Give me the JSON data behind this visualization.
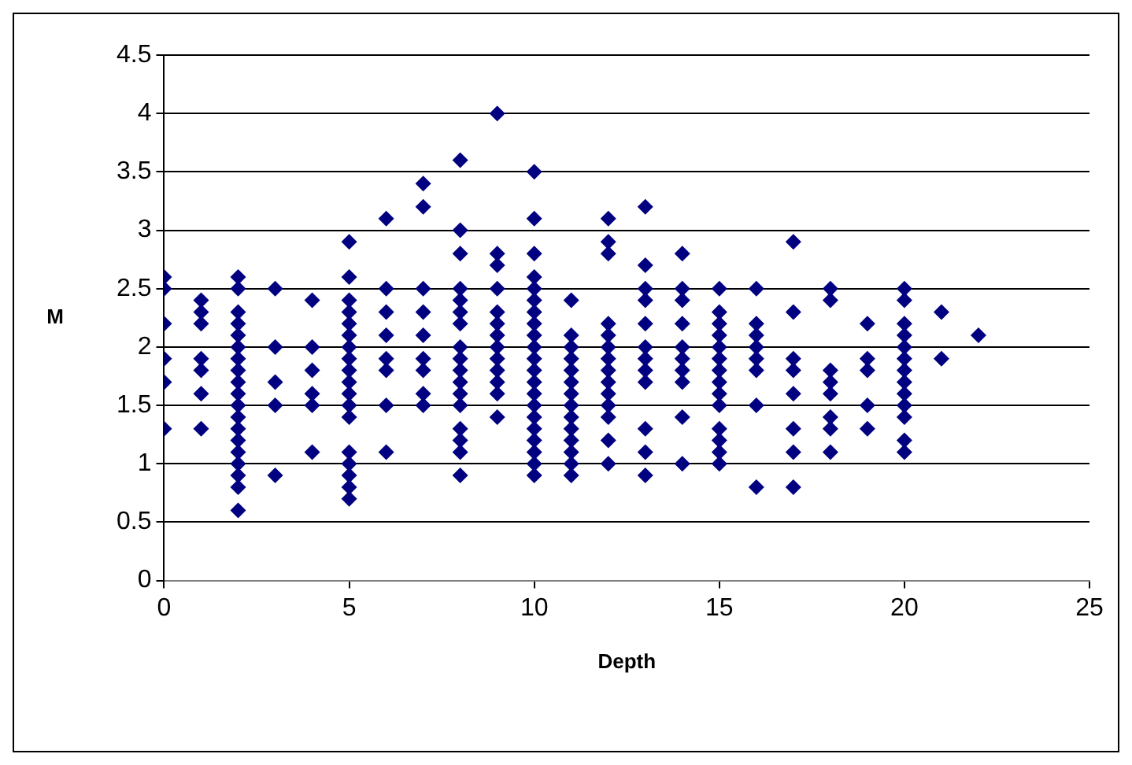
{
  "chart_data": {
    "type": "scatter",
    "xlabel": "Depth",
    "ylabel": "M",
    "xlim": [
      0,
      25
    ],
    "xticks": [
      0,
      5,
      10,
      15,
      20,
      25
    ],
    "ylim": [
      0,
      4.5
    ],
    "yticks": [
      0,
      0.5,
      1,
      1.5,
      2,
      2.5,
      3,
      3.5,
      4,
      4.5
    ],
    "grid": "y",
    "legend": false,
    "marker": "diamond",
    "series": [
      {
        "color": "#000080",
        "x": [
          0,
          0,
          0,
          0,
          0,
          0,
          1,
          1,
          1,
          1,
          1,
          1,
          1,
          2,
          2,
          2,
          2,
          2,
          2,
          2,
          2,
          2,
          2,
          2,
          2,
          2,
          2,
          2,
          2,
          2,
          2,
          2,
          3,
          3,
          3,
          3,
          3,
          4,
          4,
          4,
          4,
          4,
          4,
          5,
          5,
          5,
          5,
          5,
          5,
          5,
          5,
          5,
          5,
          5,
          5,
          5,
          5,
          5,
          5,
          5,
          5,
          6,
          6,
          6,
          6,
          6,
          6,
          6,
          6,
          7,
          7,
          7,
          7,
          7,
          7,
          7,
          7,
          7,
          8,
          8,
          8,
          8,
          8,
          8,
          8,
          8,
          8,
          8,
          8,
          8,
          8,
          8,
          8,
          8,
          8,
          9,
          9,
          9,
          9,
          9,
          9,
          9,
          9,
          9,
          9,
          9,
          9,
          9,
          10,
          10,
          10,
          10,
          10,
          10,
          10,
          10,
          10,
          10,
          10,
          10,
          10,
          10,
          10,
          10,
          10,
          10,
          10,
          10,
          10,
          11,
          11,
          11,
          11,
          11,
          11,
          11,
          11,
          11,
          11,
          11,
          11,
          11,
          11,
          12,
          12,
          12,
          12,
          12,
          12,
          12,
          12,
          12,
          12,
          12,
          12,
          12,
          12,
          13,
          13,
          13,
          13,
          13,
          13,
          13,
          13,
          13,
          13,
          13,
          13,
          14,
          14,
          14,
          14,
          14,
          14,
          14,
          14,
          14,
          14,
          15,
          15,
          15,
          15,
          15,
          15,
          15,
          15,
          15,
          15,
          15,
          15,
          15,
          15,
          16,
          16,
          16,
          16,
          16,
          16,
          16,
          16,
          17,
          17,
          17,
          17,
          17,
          17,
          17,
          17,
          18,
          18,
          18,
          18,
          18,
          18,
          18,
          18,
          19,
          19,
          19,
          19,
          19,
          20,
          20,
          20,
          20,
          20,
          20,
          20,
          20,
          20,
          20,
          20,
          20,
          20,
          21,
          21,
          22
        ],
        "values": [
          2.6,
          2.5,
          2.2,
          1.9,
          1.7,
          1.3,
          2.4,
          2.3,
          2.2,
          1.9,
          1.8,
          1.6,
          1.3,
          2.6,
          2.5,
          2.3,
          2.2,
          2.1,
          2.0,
          1.9,
          1.8,
          1.7,
          1.6,
          1.5,
          1.4,
          1.3,
          1.2,
          1.1,
          1.0,
          0.9,
          0.8,
          0.6,
          2.5,
          2.0,
          1.7,
          1.5,
          0.9,
          2.4,
          2.0,
          1.8,
          1.6,
          1.5,
          1.1,
          2.9,
          2.6,
          2.4,
          2.3,
          2.2,
          2.1,
          2.0,
          1.9,
          1.8,
          1.7,
          1.6,
          1.5,
          1.4,
          1.1,
          1.0,
          0.9,
          0.8,
          0.7,
          3.1,
          2.5,
          2.3,
          2.1,
          1.9,
          1.8,
          1.5,
          1.1,
          3.4,
          3.2,
          2.5,
          2.3,
          2.1,
          1.9,
          1.8,
          1.6,
          1.5,
          3.6,
          3.0,
          2.8,
          2.5,
          2.4,
          2.3,
          2.2,
          2.0,
          1.9,
          1.8,
          1.7,
          1.6,
          1.5,
          1.3,
          1.2,
          1.1,
          0.9,
          4.0,
          2.8,
          2.7,
          2.5,
          2.3,
          2.2,
          2.1,
          2.0,
          1.9,
          1.8,
          1.7,
          1.6,
          1.4,
          3.5,
          3.1,
          2.8,
          2.6,
          2.5,
          2.4,
          2.3,
          2.2,
          2.1,
          2.0,
          1.9,
          1.8,
          1.7,
          1.6,
          1.5,
          1.4,
          1.3,
          1.2,
          1.1,
          1.0,
          0.9,
          2.4,
          2.1,
          2.0,
          1.9,
          1.8,
          1.7,
          1.6,
          1.5,
          1.4,
          1.3,
          1.2,
          1.1,
          1.0,
          0.9,
          3.1,
          2.9,
          2.8,
          2.2,
          2.1,
          2.0,
          1.9,
          1.8,
          1.7,
          1.6,
          1.5,
          1.4,
          1.2,
          1.0,
          3.2,
          2.7,
          2.5,
          2.4,
          2.2,
          2.0,
          1.9,
          1.8,
          1.7,
          1.3,
          1.1,
          0.9,
          2.8,
          2.5,
          2.4,
          2.2,
          2.0,
          1.9,
          1.8,
          1.7,
          1.4,
          1.0,
          2.5,
          2.3,
          2.2,
          2.1,
          2.0,
          1.9,
          1.8,
          1.7,
          1.6,
          1.5,
          1.3,
          1.2,
          1.1,
          1.0,
          2.5,
          2.2,
          2.1,
          2.0,
          1.9,
          1.8,
          1.5,
          0.8,
          2.9,
          2.3,
          1.9,
          1.8,
          1.6,
          1.3,
          1.1,
          0.8,
          2.5,
          2.4,
          1.8,
          1.7,
          1.6,
          1.4,
          1.3,
          1.1,
          2.2,
          1.9,
          1.8,
          1.5,
          1.3,
          2.5,
          2.4,
          2.2,
          2.1,
          2.0,
          1.9,
          1.8,
          1.7,
          1.6,
          1.5,
          1.4,
          1.2,
          1.1,
          2.3,
          1.9,
          2.1
        ]
      }
    ]
  }
}
